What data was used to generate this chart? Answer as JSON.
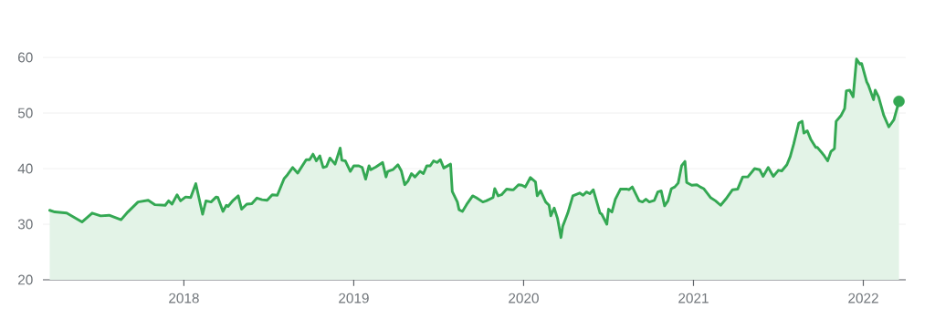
{
  "chart_data": {
    "type": "area",
    "series": [
      {
        "color": "#34a853",
        "x": [
          2017.21,
          2017.24,
          2017.31,
          2017.4,
          2017.46,
          2017.51,
          2017.56,
          2017.63,
          2017.67,
          2017.73,
          2017.79,
          2017.83,
          2017.89,
          2017.91,
          2017.93,
          2017.96,
          2017.98,
          2018.01,
          2018.04,
          2018.07,
          2018.11,
          2018.13,
          2018.16,
          2018.19,
          2018.2,
          2018.23,
          2018.25,
          2018.26,
          2018.29,
          2018.32,
          2018.34,
          2018.37,
          2018.4,
          2018.43,
          2018.46,
          2018.49,
          2018.52,
          2018.55,
          2018.59,
          2018.61,
          2018.64,
          2018.67,
          2018.72,
          2018.74,
          2018.76,
          2018.78,
          2018.8,
          2018.82,
          2018.84,
          2018.86,
          2018.89,
          2018.92,
          2018.93,
          2018.95,
          2018.98,
          2019.0,
          2019.03,
          2019.05,
          2019.07,
          2019.09,
          2019.1,
          2019.13,
          2019.17,
          2019.19,
          2019.2,
          2019.23,
          2019.26,
          2019.28,
          2019.3,
          2019.32,
          2019.34,
          2019.36,
          2019.39,
          2019.41,
          2019.43,
          2019.45,
          2019.47,
          2019.49,
          2019.51,
          2019.53,
          2019.57,
          2019.58,
          2019.61,
          2019.62,
          2019.64,
          2019.67,
          2019.7,
          2019.72,
          2019.76,
          2019.78,
          2019.82,
          2019.83,
          2019.85,
          2019.87,
          2019.9,
          2019.93,
          2019.94,
          2019.97,
          2019.99,
          2020.01,
          2020.04,
          2020.07,
          2020.08,
          2020.1,
          2020.13,
          2020.15,
          2020.16,
          2020.18,
          2020.2,
          2020.22,
          2020.23,
          2020.26,
          2020.29,
          2020.33,
          2020.35,
          2020.37,
          2020.39,
          2020.41,
          2020.45,
          2020.46,
          2020.49,
          2020.5,
          2020.52,
          2020.54,
          2020.57,
          2020.61,
          2020.62,
          2020.64,
          2020.68,
          2020.7,
          2020.72,
          2020.74,
          2020.77,
          2020.79,
          2020.81,
          2020.83,
          2020.85,
          2020.87,
          2020.89,
          2020.91,
          2020.93,
          2020.95,
          2020.96,
          2020.99,
          2021.02,
          2021.04,
          2021.06,
          2021.1,
          2021.13,
          2021.16,
          2021.19,
          2021.23,
          2021.26,
          2021.29,
          2021.32,
          2021.36,
          2021.39,
          2021.41,
          2021.44,
          2021.47,
          2021.5,
          2021.52,
          2021.55,
          2021.57,
          2021.59,
          2021.62,
          2021.64,
          2021.65,
          2021.67,
          2021.69,
          2021.72,
          2021.73,
          2021.76,
          2021.77,
          2021.79,
          2021.81,
          2021.83,
          2021.84,
          2021.87,
          2021.89,
          2021.9,
          2021.92,
          2021.94,
          2021.96,
          2021.98,
          2021.99,
          2022.02,
          2022.03,
          2022.06,
          2022.07,
          2022.09,
          2022.12,
          2022.14,
          2022.15,
          2022.18,
          2022.21
        ],
        "values": [
          32.5,
          32.2,
          32.0,
          30.4,
          32.0,
          31.5,
          31.6,
          30.8,
          32.2,
          34.0,
          34.3,
          33.5,
          33.4,
          34.2,
          33.6,
          35.3,
          34.2,
          34.9,
          34.8,
          37.3,
          31.8,
          34.2,
          34.0,
          34.9,
          34.8,
          32.3,
          33.4,
          33.2,
          34.3,
          35.1,
          32.7,
          33.6,
          33.7,
          34.7,
          34.4,
          34.3,
          35.3,
          35.2,
          38.2,
          38.9,
          40.2,
          39.2,
          41.6,
          41.6,
          42.6,
          41.4,
          42.3,
          40.2,
          40.4,
          41.9,
          40.8,
          43.7,
          41.5,
          41.4,
          39.5,
          40.5,
          40.5,
          40.2,
          38.1,
          40.5,
          39.8,
          40.3,
          41.1,
          38.5,
          39.5,
          39.8,
          40.7,
          39.6,
          37.1,
          37.8,
          39.1,
          38.5,
          39.5,
          39.1,
          40.5,
          40.5,
          41.4,
          41.1,
          41.6,
          40.1,
          40.8,
          35.9,
          34.0,
          32.6,
          32.3,
          33.8,
          35.1,
          34.8,
          34.0,
          34.2,
          34.8,
          36.4,
          35.1,
          35.3,
          36.3,
          36.2,
          36.2,
          37.1,
          37.0,
          36.7,
          38.4,
          37.6,
          35.1,
          36.0,
          34.0,
          33.4,
          31.5,
          32.9,
          31.0,
          27.6,
          29.6,
          32.0,
          35.1,
          35.6,
          35.2,
          35.8,
          35.5,
          36.2,
          32.0,
          31.8,
          30.0,
          32.7,
          32.2,
          34.5,
          36.3,
          36.3,
          36.2,
          36.7,
          34.2,
          34.0,
          34.5,
          34.0,
          34.3,
          35.8,
          36.0,
          33.3,
          34.2,
          36.4,
          36.7,
          37.4,
          40.5,
          41.3,
          37.5,
          37.0,
          37.1,
          36.7,
          36.4,
          34.8,
          34.2,
          33.4,
          34.5,
          36.2,
          36.3,
          38.5,
          38.5,
          40.0,
          39.8,
          38.6,
          40.2,
          38.6,
          39.7,
          39.6,
          40.7,
          42.2,
          44.4,
          48.2,
          48.5,
          46.4,
          46.8,
          45.3,
          43.8,
          43.8,
          42.7,
          42.3,
          41.4,
          43.1,
          43.6,
          48.5,
          49.6,
          50.8,
          54.0,
          54.1,
          52.9,
          59.7,
          58.8,
          58.9,
          55.6,
          55.0,
          52.4,
          54.1,
          52.9,
          49.6,
          48.2,
          47.5,
          48.8,
          52.1
        ]
      },
      {
        "type": "scatter",
        "color": "#34a853",
        "marker": "circle",
        "x": [
          2022.21
        ],
        "values": [
          52.1
        ]
      }
    ],
    "xlim": [
      2017.17,
      2022.25
    ],
    "xticks": [
      2018,
      2019,
      2020,
      2021,
      2022
    ],
    "ylim": [
      20,
      60
    ],
    "yticks": [
      20,
      30,
      40,
      50,
      60
    ],
    "grid": "y"
  }
}
